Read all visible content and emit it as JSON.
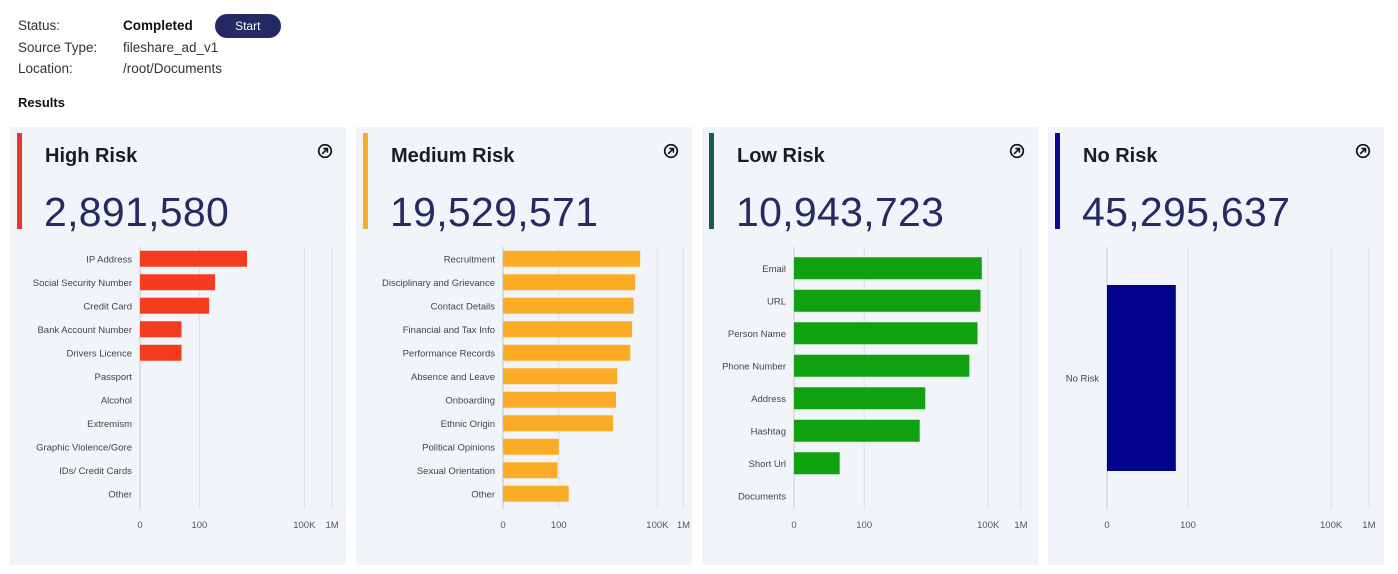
{
  "header": {
    "status_label": "Status:",
    "status_value": "Completed",
    "start_button": "Start",
    "source_type_label": "Source Type:",
    "source_type_value": "fileshare_ad_v1",
    "location_label": "Location:",
    "location_value": "/root/Documents",
    "results_title": "Results"
  },
  "cards": [
    {
      "title": "High Risk",
      "value": "2,891,580",
      "color": "#e53a2a",
      "icon": "expand-icon"
    },
    {
      "title": "Medium Risk",
      "value": "19,529,571",
      "color": "#f9ac28",
      "icon": "expand-icon"
    },
    {
      "title": "Low Risk",
      "value": "10,943,723",
      "color": "#146046",
      "icon": "expand-icon"
    },
    {
      "title": "No Risk",
      "value": "45,295,637",
      "color": "#0a0a8e",
      "icon": "expand-icon"
    }
  ],
  "chart_data": [
    {
      "type": "bar",
      "orientation": "horizontal",
      "scale": "log",
      "title": "High Risk",
      "color": "#f43c1e",
      "categories": [
        "IP Address",
        "Social Security Number",
        "Credit Card",
        "Bank Account Number",
        "Drivers Licence",
        "Passport",
        "Alcohol",
        "Extremism",
        "Graphic Violence/Gore",
        "IDs/ Credit Cards",
        "Other"
      ],
      "values": [
        2300,
        280,
        190,
        25,
        25,
        0,
        0,
        0,
        0,
        0,
        0
      ],
      "x_ticks": [
        {
          "value": 0,
          "label": "0"
        },
        {
          "value": 100,
          "label": "100"
        },
        {
          "value": 100000,
          "label": "100K"
        },
        {
          "value": 1000000,
          "label": "1M"
        }
      ]
    },
    {
      "type": "bar",
      "orientation": "horizontal",
      "scale": "log",
      "title": "Medium Risk",
      "color": "#fbab26",
      "categories": [
        "Recruitment",
        "Disciplinary and Grievance",
        "Contact Details",
        "Financial and Tax Info",
        "Performance Records",
        "Absence and Leave",
        "Onboarding",
        "Ethnic Origin",
        "Political Opinions",
        "Sexual Orientation",
        "Other"
      ],
      "values": [
        30000,
        21000,
        19000,
        17000,
        15000,
        6000,
        5500,
        4500,
        100,
        90,
        200
      ],
      "x_ticks": [
        {
          "value": 0,
          "label": "0"
        },
        {
          "value": 100,
          "label": "100"
        },
        {
          "value": 100000,
          "label": "100K"
        },
        {
          "value": 1000000,
          "label": "1M"
        }
      ]
    },
    {
      "type": "bar",
      "orientation": "horizontal",
      "scale": "log",
      "title": "Low Risk",
      "color": "#0fa10f",
      "categories": [
        "Email",
        "URL",
        "Person Name",
        "Phone Number",
        "Address",
        "Hashtag",
        "Short Url",
        "Documents"
      ],
      "values": [
        70000,
        65000,
        55000,
        35000,
        3000,
        2200,
        20,
        0
      ],
      "x_ticks": [
        {
          "value": 0,
          "label": "0"
        },
        {
          "value": 100,
          "label": "100"
        },
        {
          "value": 100000,
          "label": "100K"
        },
        {
          "value": 1000000,
          "label": "1M"
        }
      ]
    },
    {
      "type": "bar",
      "orientation": "horizontal",
      "scale": "log",
      "title": "No Risk",
      "color": "#02028c",
      "categories": [
        "No Risk"
      ],
      "values": [
        50
      ],
      "x_ticks": [
        {
          "value": 0,
          "label": "0"
        },
        {
          "value": 100,
          "label": "100"
        },
        {
          "value": 100000,
          "label": "100K"
        },
        {
          "value": 1000000,
          "label": "1M"
        }
      ]
    }
  ]
}
